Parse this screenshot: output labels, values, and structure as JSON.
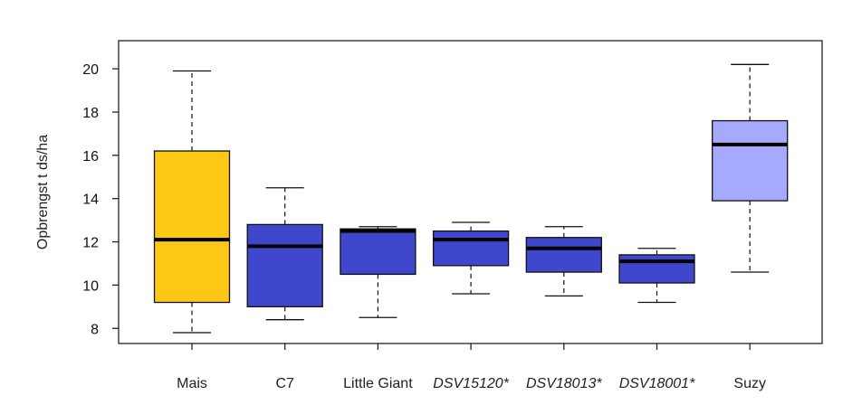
{
  "chart_data": {
    "type": "boxplot",
    "title": "",
    "xlabel": "",
    "ylabel": "Opbrengst t ds/ha",
    "ylim": [
      7.3,
      21.3
    ],
    "yticks": [
      8,
      10,
      12,
      14,
      16,
      18,
      20
    ],
    "grid": false,
    "categories": [
      {
        "label": "Mais",
        "italic": false,
        "color": "#FDC715",
        "whisker_low": 7.8,
        "q1": 9.2,
        "median": 12.1,
        "q3": 16.2,
        "whisker_high": 19.9
      },
      {
        "label": "C7",
        "italic": false,
        "color": "#3F48CC",
        "whisker_low": 8.4,
        "q1": 9.0,
        "median": 11.8,
        "q3": 12.8,
        "whisker_high": 14.5
      },
      {
        "label": "Little Giant",
        "italic": false,
        "color": "#3F48CC",
        "whisker_low": 8.5,
        "q1": 10.5,
        "median": 12.5,
        "q3": 12.6,
        "whisker_high": 12.7
      },
      {
        "label": "DSV15120*",
        "italic": true,
        "color": "#3F48CC",
        "whisker_low": 9.6,
        "q1": 10.9,
        "median": 12.1,
        "q3": 12.5,
        "whisker_high": 12.9
      },
      {
        "label": "DSV18013*",
        "italic": true,
        "color": "#3F48CC",
        "whisker_low": 9.5,
        "q1": 10.6,
        "median": 11.7,
        "q3": 12.2,
        "whisker_high": 12.7
      },
      {
        "label": "DSV18001*",
        "italic": true,
        "color": "#3F48CC",
        "whisker_low": 9.2,
        "q1": 10.1,
        "median": 11.1,
        "q3": 11.4,
        "whisker_high": 11.7
      },
      {
        "label": "Suzy",
        "italic": false,
        "color": "#A6AAFC",
        "whisker_low": 10.6,
        "q1": 13.9,
        "median": 16.5,
        "q3": 17.6,
        "whisker_high": 20.2
      }
    ]
  }
}
